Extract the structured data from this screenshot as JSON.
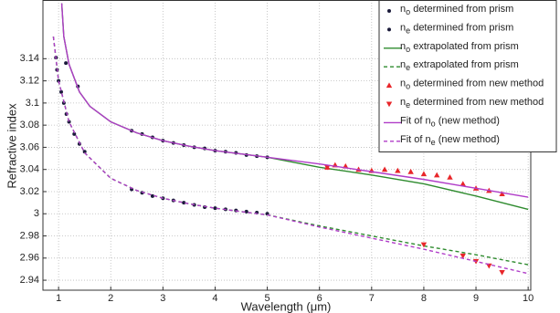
{
  "chart_data": {
    "type": "line",
    "x_label": "Wavelength (μm)",
    "y_label": "Refractive index",
    "xlim": [
      0.7,
      10.05
    ],
    "ylim": [
      2.931,
      3.193
    ],
    "xticks": [
      1,
      2,
      3,
      4,
      5,
      6,
      7,
      8,
      9,
      10
    ],
    "yticks": [
      2.94,
      2.96,
      2.98,
      3,
      3.02,
      3.04,
      3.06,
      3.08,
      3.1,
      3.12,
      3.14
    ],
    "grid": true,
    "legend": "upper right",
    "series": [
      {
        "name": "no determined from prism",
        "color": "#1a1a3a",
        "marker": "dot",
        "x": [
          1.14,
          1.37,
          2.4,
          2.6,
          2.8,
          3.0,
          3.2,
          3.4,
          3.6,
          3.8,
          4.0,
          4.2,
          4.4,
          4.6,
          4.8,
          5.0
        ],
        "values": [
          3.136,
          3.115,
          3.075,
          3.072,
          3.069,
          3.066,
          3.064,
          3.062,
          3.06,
          3.059,
          3.057,
          3.056,
          3.055,
          3.053,
          3.052,
          3.051
        ]
      },
      {
        "name": "ne determined from prism",
        "color": "#1a1a3a",
        "marker": "dot",
        "x": [
          0.95,
          0.97,
          1.0,
          1.05,
          1.1,
          1.15,
          1.2,
          1.3,
          1.4,
          1.5,
          2.4,
          2.6,
          2.8,
          3.0,
          3.2,
          3.4,
          3.6,
          3.8,
          4.0,
          4.2,
          4.4,
          4.6,
          4.8,
          5.0
        ],
        "values": [
          3.141,
          3.13,
          3.12,
          3.11,
          3.1,
          3.09,
          3.083,
          3.072,
          3.063,
          3.056,
          3.022,
          3.019,
          3.016,
          3.014,
          3.012,
          3.01,
          3.008,
          3.006,
          3.005,
          3.004,
          3.003,
          3.002,
          3.001,
          3.0
        ]
      },
      {
        "name": "no extrapolated from prism",
        "color": "#2e8b2e",
        "marker": "line",
        "x": [
          1.06,
          1.1,
          1.2,
          1.4,
          1.6,
          2,
          2.5,
          3,
          3.5,
          4,
          4.5,
          5,
          6,
          7,
          8,
          9,
          10
        ],
        "values": [
          3.19,
          3.16,
          3.135,
          3.11,
          3.097,
          3.083,
          3.073,
          3.066,
          3.061,
          3.057,
          3.054,
          3.051,
          3.042,
          3.035,
          3.027,
          3.016,
          3.004
        ]
      },
      {
        "name": "ne extrapolated from prism",
        "color": "#2e8b2e",
        "marker": "dash",
        "x": [
          0.9,
          1,
          1.2,
          1.5,
          2,
          2.5,
          3,
          3.5,
          4,
          4.5,
          5,
          6,
          7,
          8,
          9,
          10
        ],
        "values": [
          3.16,
          3.12,
          3.083,
          3.055,
          3.032,
          3.021,
          3.014,
          3.009,
          3.005,
          3.002,
          2.999,
          2.989,
          2.98,
          2.971,
          2.963,
          2.954
        ]
      },
      {
        "name": "no determined from new method",
        "color": "#e8262a",
        "marker": "tri-up",
        "x": [
          6.15,
          6.3,
          6.5,
          6.75,
          7.0,
          7.25,
          7.5,
          7.75,
          8.0,
          8.25,
          8.5,
          8.75,
          9.0,
          9.25,
          9.5
        ],
        "values": [
          3.042,
          3.044,
          3.043,
          3.04,
          3.039,
          3.04,
          3.039,
          3.038,
          3.036,
          3.035,
          3.033,
          3.027,
          3.023,
          3.021,
          3.018
        ]
      },
      {
        "name": "ne determined from new method",
        "color": "#e8262a",
        "marker": "tri-down",
        "x": [
          6.15,
          8.0,
          8.75,
          9.0,
          9.25,
          9.5
        ],
        "values": [
          3.042,
          2.972,
          2.962,
          2.957,
          2.953,
          2.947
        ]
      },
      {
        "name": "Fit of no (new method)",
        "color": "#b03cc8",
        "marker": "line",
        "x": [
          1.06,
          1.1,
          1.2,
          1.4,
          1.6,
          2,
          2.5,
          3,
          3.5,
          4,
          4.5,
          5,
          6,
          7,
          8,
          9,
          10
        ],
        "values": [
          3.19,
          3.16,
          3.135,
          3.11,
          3.097,
          3.083,
          3.073,
          3.066,
          3.061,
          3.057,
          3.054,
          3.051,
          3.045,
          3.038,
          3.031,
          3.023,
          3.015
        ]
      },
      {
        "name": "Fit of ne (new method)",
        "color": "#b03cc8",
        "marker": "dash",
        "x": [
          0.9,
          1,
          1.2,
          1.5,
          2,
          2.5,
          3,
          3.5,
          4,
          4.5,
          5,
          6,
          7,
          8,
          9,
          10
        ],
        "values": [
          3.16,
          3.12,
          3.083,
          3.055,
          3.032,
          3.021,
          3.014,
          3.009,
          3.005,
          3.002,
          2.999,
          2.988,
          2.978,
          2.968,
          2.957,
          2.946
        ]
      }
    ]
  }
}
